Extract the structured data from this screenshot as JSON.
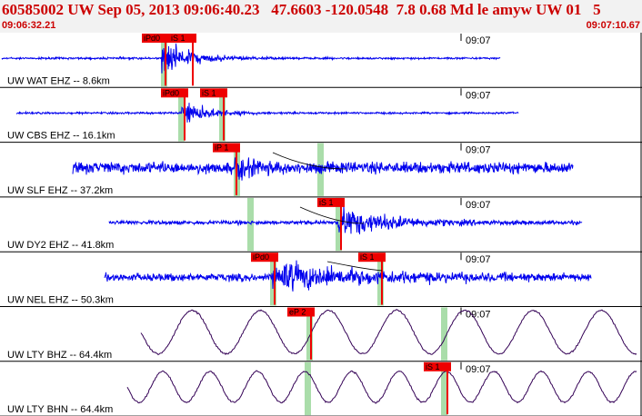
{
  "header": {
    "title": "60585002 UW Sep 05, 2013 09:06:40.23   47.6603 -120.0548  7.8 0.68 Md le amyw UW 01   5",
    "time_start": "09:06:32.21",
    "time_end": "09:07:10.67"
  },
  "minute_label": "09:07",
  "colors": {
    "trace_short_period": "#0000ee",
    "trace_broadband": "#330055",
    "pick": "#ee0000",
    "theoretical_band": "#aaddaa",
    "header_text": "#cc0000",
    "header_bg": "#f2f2f2"
  },
  "traces": [
    {
      "label": "UW WAT EHZ -- 8.6km",
      "kind": "sp",
      "picks": [
        "iPd0",
        "iS 1"
      ]
    },
    {
      "label": "UW CBS EHZ -- 16.1km",
      "kind": "sp",
      "picks": [
        "iPd0",
        "iS 1"
      ]
    },
    {
      "label": "UW SLF EHZ -- 37.2km",
      "kind": "sp",
      "picks": [
        "iP 1"
      ]
    },
    {
      "label": "UW DY2 EHZ -- 41.8km",
      "kind": "sp",
      "picks": [
        "iS 1"
      ]
    },
    {
      "label": "UW NEL EHZ -- 50.3km",
      "kind": "sp",
      "picks": [
        "iPd0",
        "iS 1"
      ]
    },
    {
      "label": "UW LTY BHZ -- 64.4km",
      "kind": "bb",
      "picks": [
        "eP 2"
      ]
    },
    {
      "label": "UW LTY BHN -- 64.4km",
      "kind": "bb",
      "picks": [
        "iS 1"
      ]
    }
  ]
}
